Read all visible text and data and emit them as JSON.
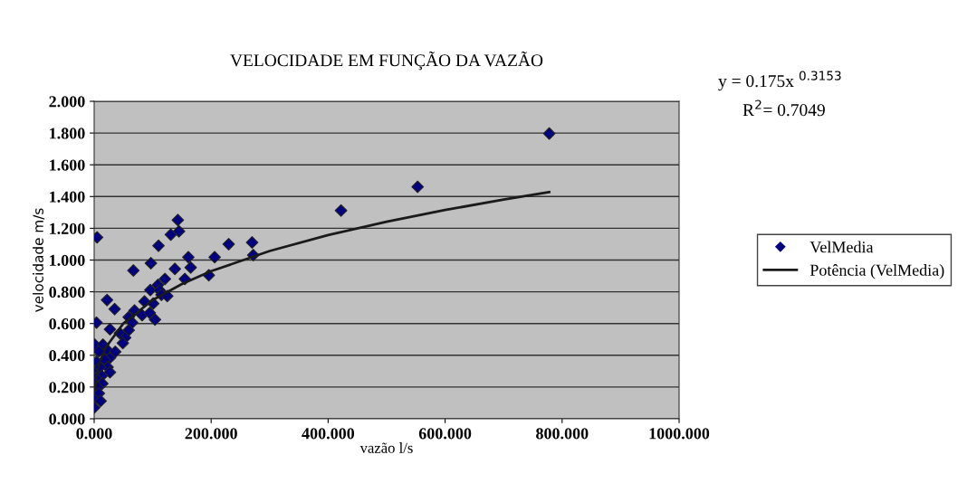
{
  "chart_data": {
    "type": "scatter",
    "title": "VELOCIDADE EM FUNÇÃO DA VAZÃO",
    "xlabel": "vazão l/s",
    "ylabel": "velocidade m/s",
    "annotations": [
      "y = 0.175x $^{0.3153}$",
      "R$^{2}$= 0.7049"
    ],
    "xlim": [
      0,
      1000
    ],
    "xticks": [
      {
        "value": 0,
        "label": "0.000"
      },
      {
        "value": 200,
        "label": "200.000"
      },
      {
        "value": 400,
        "label": "400.000"
      },
      {
        "value": 600,
        "label": "600.000"
      },
      {
        "value": 800,
        "label": "800.000"
      },
      {
        "value": 1000,
        "label": "1000.000"
      }
    ],
    "ylim": [
      0,
      2
    ],
    "yticks": [
      {
        "value": 0,
        "label": "0.000"
      },
      {
        "value": 0.2,
        "label": "0.200"
      },
      {
        "value": 0.4,
        "label": "0.400"
      },
      {
        "value": 0.6,
        "label": "0.600"
      },
      {
        "value": 0.8,
        "label": "0.800"
      },
      {
        "value": 1.0,
        "label": "1.000"
      },
      {
        "value": 1.2,
        "label": "1.200"
      },
      {
        "value": 1.4,
        "label": "1.400"
      },
      {
        "value": 1.6,
        "label": "1.600"
      },
      {
        "value": 1.8,
        "label": "1.800"
      },
      {
        "value": 2.0,
        "label": "2.000"
      }
    ],
    "grid": "y",
    "legend": "right",
    "marker": "diamond",
    "series": [
      {
        "name": "VelMedia",
        "color": "#000080",
        "x": [
          5,
          143,
          131,
          145,
          110,
          230,
          270,
          272,
          161,
          206,
          97,
          67,
          138,
          165,
          196,
          155,
          121,
          109,
          96,
          112,
          115,
          125,
          86,
          101,
          22,
          35,
          69,
          59,
          82,
          95,
          104,
          65,
          4,
          27,
          44,
          59,
          53,
          49,
          1,
          15,
          23,
          36,
          8,
          27,
          4,
          18,
          23,
          10,
          27,
          0,
          13,
          3,
          0,
          14,
          6,
          8,
          0,
          11,
          0,
          422,
          553,
          778
        ],
        "values": [
          1.143,
          1.252,
          1.16,
          1.181,
          1.09,
          1.1,
          1.111,
          1.031,
          1.018,
          1.018,
          0.98,
          0.934,
          0.944,
          0.953,
          0.904,
          0.881,
          0.881,
          0.843,
          0.811,
          0.809,
          0.781,
          0.773,
          0.739,
          0.726,
          0.748,
          0.691,
          0.682,
          0.64,
          0.653,
          0.667,
          0.625,
          0.606,
          0.606,
          0.564,
          0.539,
          0.558,
          0.511,
          0.477,
          0.467,
          0.467,
          0.431,
          0.422,
          0.425,
          0.384,
          0.359,
          0.372,
          0.325,
          0.325,
          0.293,
          0.289,
          0.27,
          0.258,
          0.226,
          0.222,
          0.198,
          0.16,
          0.122,
          0.112,
          0.07,
          1.312,
          1.461,
          1.797
        ]
      },
      {
        "name": "Potência (VelMedia)",
        "type": "line",
        "color": "#1a1a1a",
        "marker": "none",
        "line_style": "solid",
        "x": [
          1,
          5,
          10,
          20,
          50,
          100,
          150,
          200,
          300,
          400,
          500,
          600,
          700,
          778
        ],
        "values": [
          0.175,
          0.291,
          0.362,
          0.45,
          0.601,
          0.748,
          0.849,
          0.93,
          1.057,
          1.157,
          1.242,
          1.315,
          1.381,
          1.428
        ]
      }
    ]
  }
}
